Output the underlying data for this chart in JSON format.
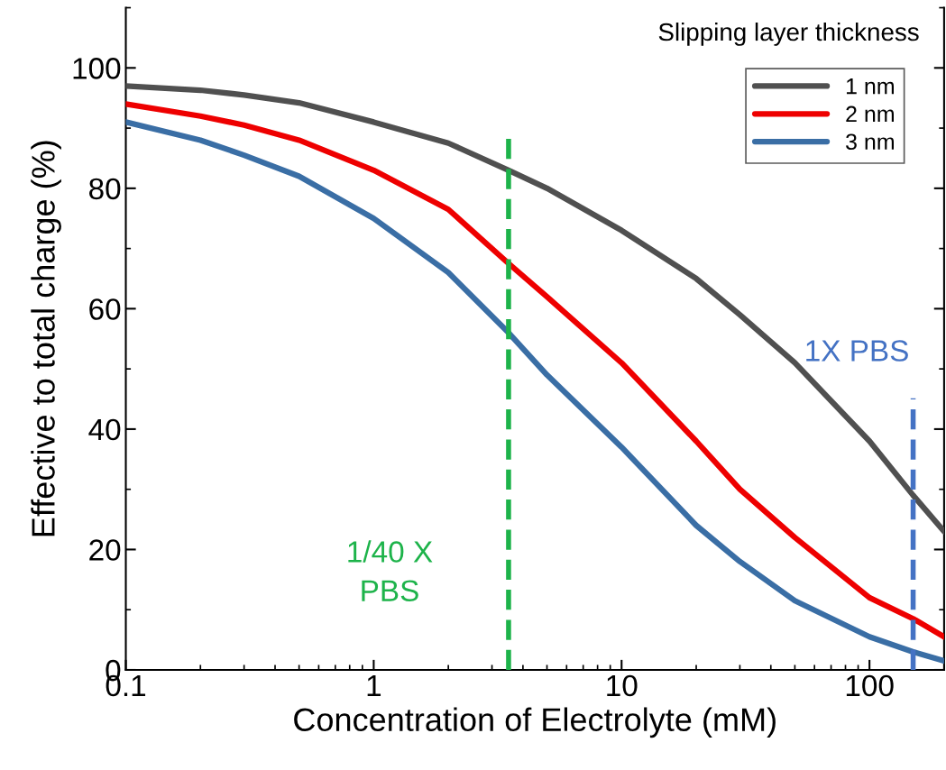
{
  "chart_data": {
    "type": "line",
    "xlabel": "Concentration of Electrolyte (mM)",
    "ylabel": "Effective to total charge (%)",
    "legend_title": "Slipping layer thickness",
    "legend": "top right",
    "log": "x",
    "grid": false,
    "marker": "none",
    "line_style": "solid",
    "x": [
      0.1,
      0.2,
      0.3,
      0.5,
      1,
      2,
      3.5,
      5,
      10,
      20,
      30,
      50,
      100,
      150,
      200
    ],
    "series": [
      {
        "name": "1 nm",
        "color": "#505050",
        "values": [
          97,
          96.3,
          95.5,
          94.2,
          91,
          87.5,
          83,
          80,
          73,
          65,
          59,
          51,
          38,
          29,
          23
        ]
      },
      {
        "name": "2 nm",
        "color": "#ee0000",
        "values": [
          94,
          92,
          90.5,
          88,
          83,
          76.5,
          67.5,
          62,
          51,
          38,
          30,
          22,
          12,
          8.5,
          5.5
        ]
      },
      {
        "name": "3 nm",
        "color": "#3a6ea5",
        "values": [
          91,
          88,
          85.5,
          82,
          75,
          66,
          56,
          49,
          37,
          24,
          18,
          11.5,
          5.5,
          3,
          1.5
        ]
      }
    ],
    "xlim": [
      0.1,
      200
    ],
    "xticks": [
      0.1,
      1,
      10,
      100
    ],
    "ylim": [
      0,
      110
    ],
    "yticks": [
      0,
      20,
      40,
      60,
      80,
      100
    ],
    "ref_lines": [
      {
        "axis": "x",
        "value": 3.5,
        "label": "1/40 X\nPBS",
        "color": "#1db34a",
        "line_style": "dashed"
      },
      {
        "axis": "x",
        "value": 150,
        "label": "1X PBS",
        "color": "#4472c4",
        "line_style": "dashed"
      }
    ]
  }
}
